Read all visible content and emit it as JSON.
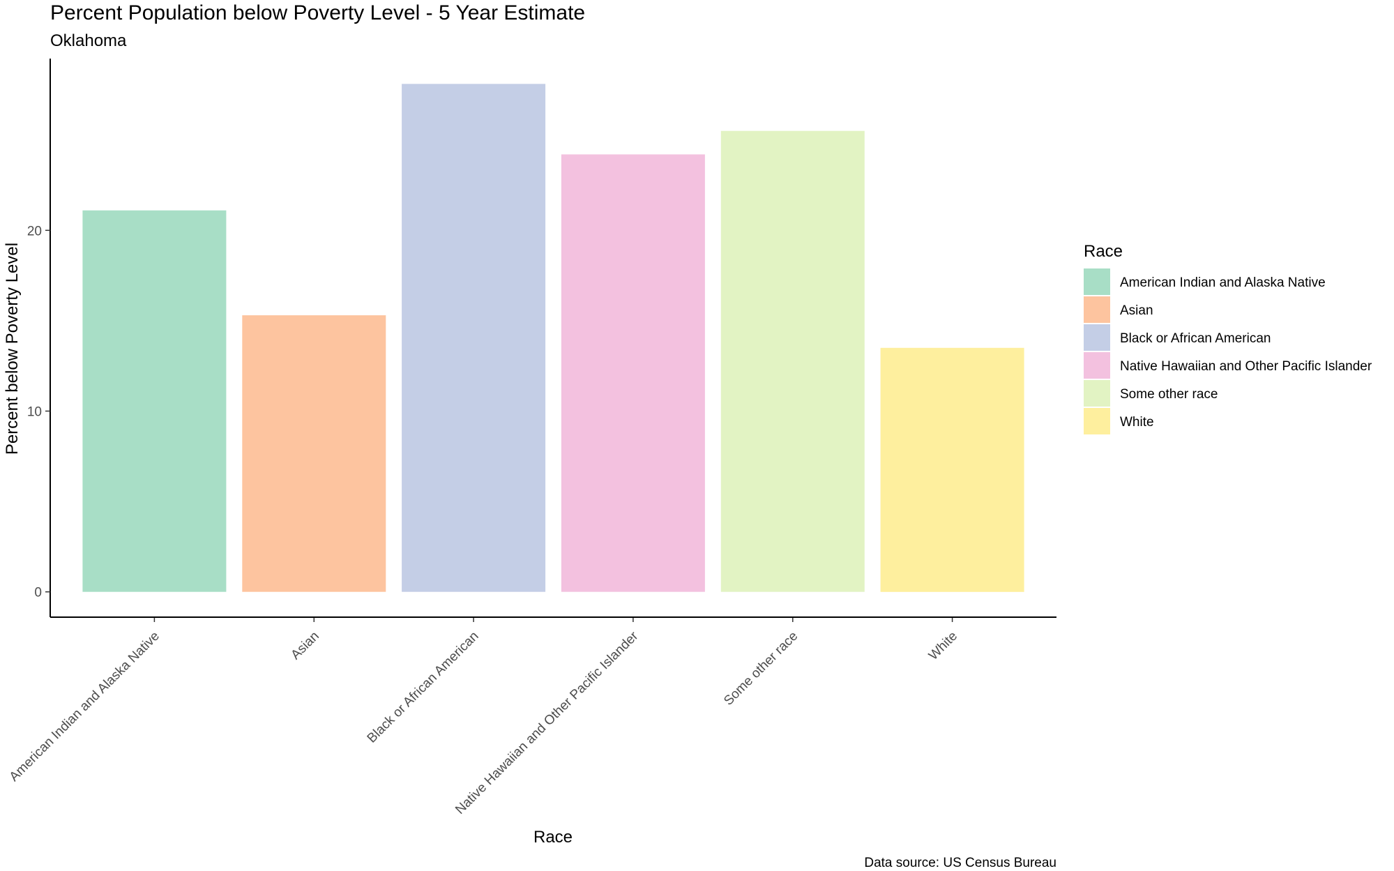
{
  "chart_data": {
    "type": "bar",
    "title": "Percent Population below Poverty Level - 5 Year Estimate",
    "subtitle": "Oklahoma",
    "xlabel": "Race",
    "ylabel": "Percent below Poverty Level",
    "caption": "Data source: US Census Bureau",
    "categories": [
      "American Indian and Alaska Native",
      "Asian",
      "Black or African American",
      "Native Hawaiian and Other Pacific Islander",
      "Some other race",
      "White"
    ],
    "values": [
      21.1,
      15.3,
      28.1,
      24.2,
      25.5,
      13.5
    ],
    "colors": [
      "#a8dec6",
      "#fdc49f",
      "#c4cee6",
      "#f3c1df",
      "#e2f3c3",
      "#feef9e"
    ],
    "yticks": [
      0,
      10,
      20
    ],
    "ylim": [
      -1.4,
      29.5
    ],
    "grid": false,
    "legend": {
      "title": "Race",
      "position": "right",
      "entries": [
        "American Indian and Alaska Native",
        "Asian",
        "Black or African American",
        "Native Hawaiian and Other Pacific Islander",
        "Some other race",
        "White"
      ]
    }
  }
}
